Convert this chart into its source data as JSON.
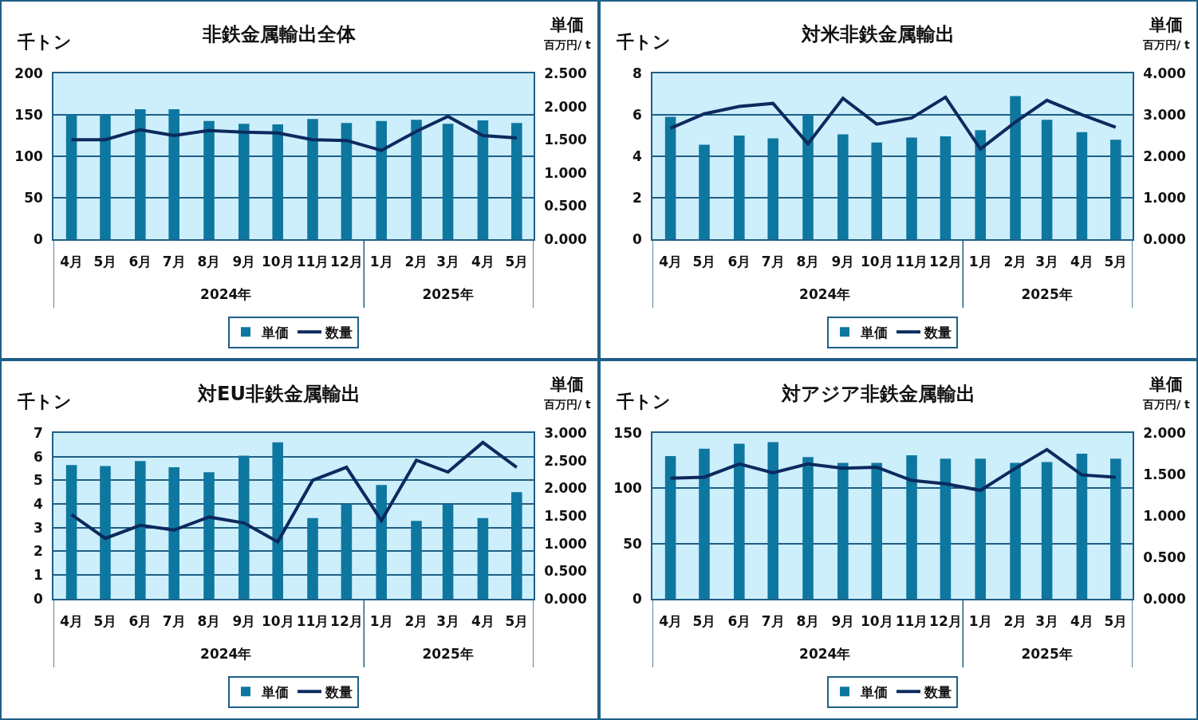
{
  "chart_data": [
    {
      "type": "bar",
      "title": "非鉄金属輸出全体",
      "ylabel": "千トン",
      "y2label": "単価",
      "annotations": [
        "百万円/ t"
      ],
      "x": [
        "2024-04",
        "2024-05",
        "2024-06",
        "2024-07",
        "2024-08",
        "2024-09",
        "2024-10",
        "2024-11",
        "2024-12",
        "2025-01",
        "2025-02",
        "2025-03",
        "2025-04",
        "2025-05"
      ],
      "xlim": [
        "2024-03-16",
        "2025-05-16"
      ],
      "xticks": [
        {
          "value": "2024-04",
          "label": "4月"
        },
        {
          "value": "2024-05",
          "label": "5月"
        },
        {
          "value": "2024-06",
          "label": "6月"
        },
        {
          "value": "2024-07",
          "label": "7月"
        },
        {
          "value": "2024-08",
          "label": "8月"
        },
        {
          "value": "2024-09",
          "label": "9月"
        },
        {
          "value": "2024-10",
          "label": "10月"
        },
        {
          "value": "2024-11",
          "label": "11月"
        },
        {
          "value": "2024-12",
          "label": "12月"
        },
        {
          "value": "2025-01",
          "label": "1月"
        },
        {
          "value": "2025-02",
          "label": "2月"
        },
        {
          "value": "2025-03",
          "label": "3月"
        },
        {
          "value": "2025-04",
          "label": "4月"
        },
        {
          "value": "2025-05",
          "label": "5月"
        }
      ],
      "x2lim": [
        "2024-03-16",
        "2025-05-16"
      ],
      "x2ticks": [
        {
          "value": "2024-08-16",
          "label": "2024年"
        },
        {
          "value": "2025-03-01",
          "label": "2025年"
        }
      ],
      "series": [
        {
          "name": "単価",
          "axis": "y2",
          "color": "#0e77a0",
          "values": [
            1.88,
            1.88,
            1.96,
            1.96,
            1.78,
            1.74,
            1.73,
            1.81,
            1.75,
            1.78,
            1.8,
            1.74,
            1.79,
            1.75
          ]
        },
        {
          "name": "数量",
          "type": "line",
          "color": "#0c2a5e",
          "values": [
            120,
            120,
            132,
            125,
            131,
            129,
            128,
            120,
            119,
            107,
            130,
            148,
            125,
            122
          ]
        }
      ],
      "ylim": [
        0,
        200
      ],
      "yticks": [
        0,
        50,
        100,
        150,
        200
      ],
      "y2lim": [
        0,
        2.5
      ],
      "y2ticks": [
        {
          "value": 0,
          "label": "0.000"
        },
        {
          "value": 0.5,
          "label": "0.500"
        },
        {
          "value": 1,
          "label": "1.000"
        },
        {
          "value": 1.5,
          "label": "1.500"
        },
        {
          "value": 2,
          "label": "2.000"
        },
        {
          "value": 2.5,
          "label": "2.500"
        }
      ],
      "grid": "y",
      "legend": "bottom",
      "marker": "none",
      "line_style": "solid"
    },
    {
      "type": "bar",
      "title": "対米非鉄金属輸出",
      "ylabel": "千トン",
      "y2label": "単価",
      "annotations": [
        "百万円/ t"
      ],
      "x": [
        "2024-04",
        "2024-05",
        "2024-06",
        "2024-07",
        "2024-08",
        "2024-09",
        "2024-10",
        "2024-11",
        "2024-12",
        "2025-01",
        "2025-02",
        "2025-03",
        "2025-04",
        "2025-05"
      ],
      "xlim": [
        "2024-03-16",
        "2025-05-16"
      ],
      "xticks": [
        {
          "value": "2024-04",
          "label": "4月"
        },
        {
          "value": "2024-05",
          "label": "5月"
        },
        {
          "value": "2024-06",
          "label": "6月"
        },
        {
          "value": "2024-07",
          "label": "7月"
        },
        {
          "value": "2024-08",
          "label": "8月"
        },
        {
          "value": "2024-09",
          "label": "9月"
        },
        {
          "value": "2024-10",
          "label": "10月"
        },
        {
          "value": "2024-11",
          "label": "11月"
        },
        {
          "value": "2024-12",
          "label": "12月"
        },
        {
          "value": "2025-01",
          "label": "1月"
        },
        {
          "value": "2025-02",
          "label": "2月"
        },
        {
          "value": "2025-03",
          "label": "3月"
        },
        {
          "value": "2025-04",
          "label": "4月"
        },
        {
          "value": "2025-05",
          "label": "5月"
        }
      ],
      "x2lim": [
        "2024-03-16",
        "2025-05-16"
      ],
      "x2ticks": [
        {
          "value": "2024-08-16",
          "label": "2024年"
        },
        {
          "value": "2025-03-01",
          "label": "2025年"
        }
      ],
      "series": [
        {
          "name": "単価",
          "axis": "y2",
          "color": "#0e77a0",
          "values": [
            2.95,
            2.28,
            2.5,
            2.43,
            3.0,
            2.53,
            2.33,
            2.45,
            2.48,
            2.63,
            3.45,
            2.88,
            2.58,
            2.4
          ]
        },
        {
          "name": "数量",
          "type": "line",
          "color": "#0c2a5e",
          "values": [
            5.35,
            6.05,
            6.4,
            6.55,
            4.6,
            6.8,
            5.55,
            5.85,
            6.85,
            4.35,
            5.65,
            6.7,
            6.0,
            5.4
          ]
        }
      ],
      "ylim": [
        0,
        8
      ],
      "yticks": [
        0,
        2,
        4,
        6,
        8
      ],
      "y2lim": [
        0,
        4
      ],
      "y2ticks": [
        {
          "value": 0,
          "label": "0.000"
        },
        {
          "value": 1,
          "label": "1.000"
        },
        {
          "value": 2,
          "label": "2.000"
        },
        {
          "value": 3,
          "label": "3.000"
        },
        {
          "value": 4,
          "label": "4.000"
        }
      ],
      "grid": "y",
      "legend": "bottom",
      "marker": "none",
      "line_style": "solid"
    },
    {
      "type": "bar",
      "title": "対EU非鉄金属輸出",
      "ylabel": "千トン",
      "y2label": "単価",
      "annotations": [
        "百万円/ t"
      ],
      "x": [
        "2024-04",
        "2024-05",
        "2024-06",
        "2024-07",
        "2024-08",
        "2024-09",
        "2024-10",
        "2024-11",
        "2024-12",
        "2025-01",
        "2025-02",
        "2025-03",
        "2025-04",
        "2025-05"
      ],
      "xlim": [
        "2024-03-16",
        "2025-05-16"
      ],
      "xticks": [
        {
          "value": "2024-04",
          "label": "4月"
        },
        {
          "value": "2024-05",
          "label": "5月"
        },
        {
          "value": "2024-06",
          "label": "6月"
        },
        {
          "value": "2024-07",
          "label": "7月"
        },
        {
          "value": "2024-08",
          "label": "8月"
        },
        {
          "value": "2024-09",
          "label": "9月"
        },
        {
          "value": "2024-10",
          "label": "10月"
        },
        {
          "value": "2024-11",
          "label": "11月"
        },
        {
          "value": "2024-12",
          "label": "12月"
        },
        {
          "value": "2025-01",
          "label": "1月"
        },
        {
          "value": "2025-02",
          "label": "2月"
        },
        {
          "value": "2025-03",
          "label": "3月"
        },
        {
          "value": "2025-04",
          "label": "4月"
        },
        {
          "value": "2025-05",
          "label": "5月"
        }
      ],
      "x2lim": [
        "2024-03-16",
        "2025-05-16"
      ],
      "x2ticks": [
        {
          "value": "2024-08-16",
          "label": "2024年"
        },
        {
          "value": "2025-03-01",
          "label": "2025年"
        }
      ],
      "series": [
        {
          "name": "単価",
          "axis": "y2",
          "color": "#0e77a0",
          "values": [
            2.42,
            2.4,
            2.49,
            2.38,
            2.29,
            2.59,
            2.83,
            1.46,
            1.71,
            2.06,
            1.41,
            1.71,
            1.46,
            1.93
          ]
        },
        {
          "name": "数量",
          "type": "line",
          "color": "#0c2a5e",
          "values": [
            3.55,
            2.55,
            3.1,
            2.9,
            3.45,
            3.2,
            2.4,
            5.0,
            5.55,
            3.3,
            5.85,
            5.35,
            6.6,
            5.55
          ]
        }
      ],
      "ylim": [
        0,
        7
      ],
      "yticks": [
        0,
        1,
        2,
        3,
        4,
        5,
        6,
        7
      ],
      "y2lim": [
        0,
        3
      ],
      "y2ticks": [
        {
          "value": 0,
          "label": "0.000"
        },
        {
          "value": 0.5,
          "label": "0.500"
        },
        {
          "value": 1,
          "label": "1.000"
        },
        {
          "value": 1.5,
          "label": "1.500"
        },
        {
          "value": 2,
          "label": "2.000"
        },
        {
          "value": 2.5,
          "label": "2.500"
        },
        {
          "value": 3,
          "label": "3.000"
        }
      ],
      "grid": "y",
      "legend": "bottom",
      "marker": "none",
      "line_style": "solid"
    },
    {
      "type": "bar",
      "title": "対アジア非鉄金属輸出",
      "ylabel": "千トン",
      "y2label": "単価",
      "annotations": [
        "百万円/ t"
      ],
      "x": [
        "2024-04",
        "2024-05",
        "2024-06",
        "2024-07",
        "2024-08",
        "2024-09",
        "2024-10",
        "2024-11",
        "2024-12",
        "2025-01",
        "2025-02",
        "2025-03",
        "2025-04",
        "2025-05"
      ],
      "xlim": [
        "2024-03-16",
        "2025-05-16"
      ],
      "xticks": [
        {
          "value": "2024-04",
          "label": "4月"
        },
        {
          "value": "2024-05",
          "label": "5月"
        },
        {
          "value": "2024-06",
          "label": "6月"
        },
        {
          "value": "2024-07",
          "label": "7月"
        },
        {
          "value": "2024-08",
          "label": "8月"
        },
        {
          "value": "2024-09",
          "label": "9月"
        },
        {
          "value": "2024-10",
          "label": "10月"
        },
        {
          "value": "2024-11",
          "label": "11月"
        },
        {
          "value": "2024-12",
          "label": "12月"
        },
        {
          "value": "2025-01",
          "label": "1月"
        },
        {
          "value": "2025-02",
          "label": "2月"
        },
        {
          "value": "2025-03",
          "label": "3月"
        },
        {
          "value": "2025-04",
          "label": "4月"
        },
        {
          "value": "2025-05",
          "label": "5月"
        }
      ],
      "x2lim": [
        "2024-03-16",
        "2025-05-16"
      ],
      "x2ticks": [
        {
          "value": "2024-08-16",
          "label": "2024年"
        },
        {
          "value": "2025-03-01",
          "label": "2025年"
        }
      ],
      "series": [
        {
          "name": "単価",
          "axis": "y2",
          "color": "#0e77a0",
          "values": [
            1.72,
            1.81,
            1.87,
            1.89,
            1.71,
            1.64,
            1.64,
            1.73,
            1.69,
            1.69,
            1.64,
            1.65,
            1.75,
            1.69
          ]
        },
        {
          "name": "数量",
          "type": "line",
          "color": "#0c2a5e",
          "values": [
            109,
            110,
            122,
            114,
            122,
            118,
            119,
            107,
            104,
            98,
            118,
            135,
            112,
            110
          ]
        }
      ],
      "ylim": [
        0,
        150
      ],
      "yticks": [
        0,
        50,
        100,
        150
      ],
      "y2lim": [
        0,
        2
      ],
      "y2ticks": [
        {
          "value": 0,
          "label": "0.000"
        },
        {
          "value": 0.5,
          "label": "0.500"
        },
        {
          "value": 1,
          "label": "1.000"
        },
        {
          "value": 1.5,
          "label": "1.500"
        },
        {
          "value": 2,
          "label": "2.000"
        }
      ],
      "grid": "y",
      "legend": "bottom",
      "marker": "none",
      "line_style": "solid"
    }
  ]
}
